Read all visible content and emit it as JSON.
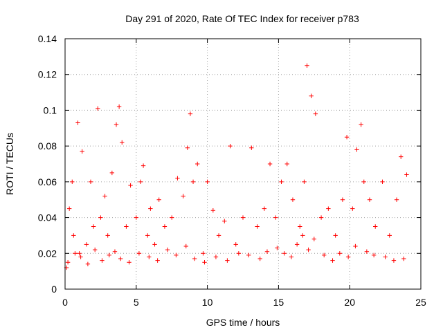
{
  "chart_data": {
    "type": "scatter",
    "title": "Day 291 of 2020, Rate Of TEC Index for receiver p783",
    "xlabel": "GPS time / hours",
    "ylabel": "ROTI / TECUs",
    "xlim": [
      0,
      25
    ],
    "ylim": [
      0,
      0.14
    ],
    "xticks": [
      0,
      5,
      10,
      15,
      20,
      25
    ],
    "xtick_labels": [
      "0",
      "5",
      "10",
      "15",
      "20",
      "25"
    ],
    "yticks": [
      0,
      0.02,
      0.04,
      0.06,
      0.08,
      0.1,
      0.12,
      0.14
    ],
    "ytick_labels": [
      "0",
      "0.02",
      "0.04",
      "0.06",
      "0.08",
      "0.1",
      "0.12",
      "0.14"
    ],
    "grid": true,
    "marker": "+",
    "series": [
      {
        "name": "ROTI",
        "color": "#ff0000",
        "x": [
          0.1,
          0.3,
          0.5,
          0.6,
          0.9,
          1.0,
          1.2,
          1.5,
          1.8,
          2.0,
          2.3,
          2.5,
          2.8,
          3.0,
          3.3,
          3.6,
          3.8,
          4.0,
          4.3,
          4.6,
          5.0,
          5.3,
          5.5,
          5.8,
          6.0,
          6.3,
          6.6,
          7.0,
          7.5,
          7.9,
          8.3,
          8.6,
          8.8,
          9.0,
          9.3,
          9.7,
          10.0,
          10.4,
          10.8,
          11.2,
          11.6,
          12.0,
          12.5,
          13.1,
          13.5,
          14.0,
          14.4,
          14.8,
          15.2,
          15.6,
          16.0,
          16.5,
          16.8,
          17.0,
          17.3,
          17.6,
          18.0,
          18.5,
          19.0,
          19.5,
          19.8,
          20.2,
          20.5,
          20.8,
          21.0,
          21.4,
          21.8,
          22.3,
          22.8,
          23.3,
          23.6,
          24.0,
          0.2,
          0.7,
          1.1,
          1.6,
          2.1,
          2.6,
          3.1,
          3.5,
          3.9,
          4.5,
          5.2,
          5.9,
          6.5,
          7.2,
          7.8,
          8.5,
          9.1,
          9.8,
          10.6,
          11.4,
          12.2,
          12.9,
          13.7,
          14.2,
          14.9,
          15.4,
          15.9,
          16.3,
          16.7,
          17.1,
          17.5,
          18.2,
          18.8,
          19.3,
          19.9,
          20.4,
          21.2,
          21.7,
          22.5,
          23.1,
          23.8
        ],
        "y": [
          0.012,
          0.045,
          0.06,
          0.03,
          0.093,
          0.02,
          0.077,
          0.025,
          0.06,
          0.035,
          0.101,
          0.04,
          0.052,
          0.03,
          0.065,
          0.092,
          0.102,
          0.082,
          0.035,
          0.058,
          0.04,
          0.06,
          0.069,
          0.03,
          0.045,
          0.025,
          0.05,
          0.035,
          0.04,
          0.062,
          0.052,
          0.079,
          0.098,
          0.06,
          0.07,
          0.02,
          0.06,
          0.044,
          0.03,
          0.038,
          0.08,
          0.025,
          0.04,
          0.079,
          0.035,
          0.045,
          0.07,
          0.04,
          0.06,
          0.07,
          0.05,
          0.035,
          0.06,
          0.125,
          0.108,
          0.098,
          0.04,
          0.045,
          0.03,
          0.05,
          0.085,
          0.045,
          0.078,
          0.092,
          0.06,
          0.05,
          0.035,
          0.06,
          0.03,
          0.05,
          0.074,
          0.064,
          0.015,
          0.02,
          0.018,
          0.014,
          0.022,
          0.016,
          0.019,
          0.021,
          0.017,
          0.015,
          0.02,
          0.018,
          0.016,
          0.022,
          0.019,
          0.024,
          0.017,
          0.015,
          0.018,
          0.016,
          0.02,
          0.019,
          0.017,
          0.021,
          0.023,
          0.02,
          0.018,
          0.025,
          0.03,
          0.022,
          0.028,
          0.019,
          0.016,
          0.02,
          0.018,
          0.024,
          0.021,
          0.019,
          0.018,
          0.016,
          0.017
        ]
      }
    ]
  }
}
